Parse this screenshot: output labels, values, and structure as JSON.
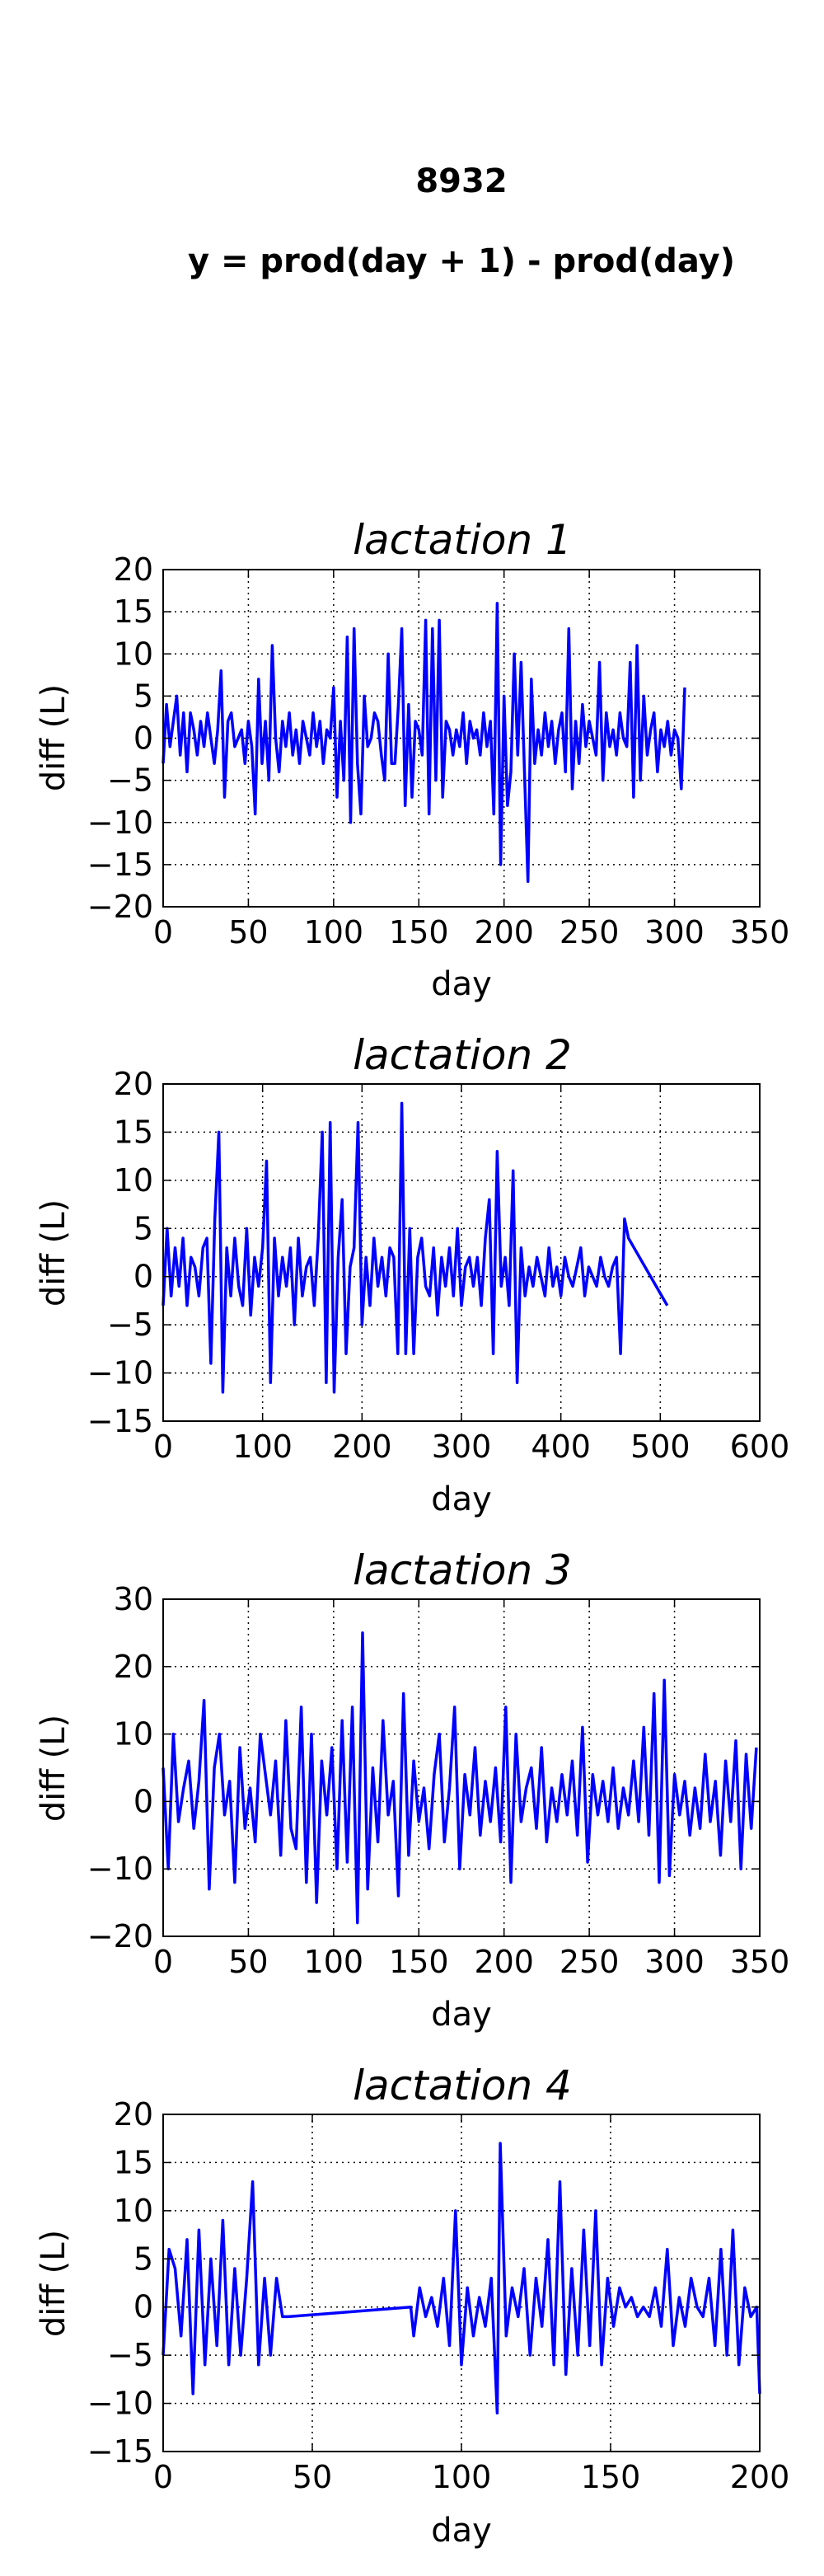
{
  "figure": {
    "title": "8932",
    "subtitle": "y = prod(day + 1) - prod(day)"
  },
  "chart_data": [
    {
      "type": "line",
      "title": "lactation 1",
      "xlabel": "day",
      "ylabel": "diff (L)",
      "xlim": [
        0,
        350
      ],
      "ylim": [
        -20,
        20
      ],
      "xticks": [
        0,
        50,
        100,
        150,
        200,
        250,
        300,
        350
      ],
      "yticks": [
        -20,
        -15,
        -10,
        -5,
        0,
        5,
        10,
        15,
        20
      ],
      "grid": true,
      "color": "#0000ff",
      "series": [
        {
          "x": [
            0,
            2,
            4,
            6,
            8,
            10,
            12,
            14,
            16,
            18,
            20,
            22,
            24,
            26,
            28,
            30,
            32,
            34,
            36,
            38,
            40,
            42,
            44,
            46,
            48,
            50,
            52,
            54,
            56,
            58,
            60,
            62,
            64,
            66,
            68,
            70,
            72,
            74,
            76,
            78,
            80,
            82,
            84,
            86,
            88,
            90,
            92,
            94,
            96,
            98,
            100,
            102,
            104,
            106,
            108,
            110,
            112,
            114,
            116,
            118,
            120,
            122,
            124,
            126,
            128,
            130,
            132,
            134,
            136,
            138,
            140,
            142,
            144,
            146,
            148,
            150,
            152,
            154,
            156,
            158,
            160,
            162,
            164,
            166,
            168,
            170,
            172,
            174,
            176,
            178,
            180,
            182,
            184,
            186,
            188,
            190,
            192,
            194,
            196,
            198,
            200,
            202,
            204,
            206,
            208,
            210,
            212,
            214,
            216,
            218,
            220,
            222,
            224,
            226,
            228,
            230,
            232,
            234,
            236,
            238,
            240,
            242,
            244,
            246,
            248,
            250,
            252,
            254,
            256,
            258,
            260,
            262,
            264,
            266,
            268,
            270,
            272,
            274,
            276,
            278,
            280,
            282,
            284,
            286,
            288,
            290,
            292,
            294,
            296,
            298,
            300,
            302,
            304,
            306
          ],
          "values": [
            -3,
            4,
            -1,
            2,
            5,
            -2,
            3,
            -4,
            3,
            1,
            -2,
            2,
            -1,
            3,
            0,
            -3,
            1,
            8,
            -7,
            2,
            3,
            -1,
            0,
            1,
            -3,
            2,
            -1,
            -9,
            7,
            -3,
            2,
            -5,
            11,
            0,
            -4,
            2,
            -1,
            3,
            -2,
            1,
            -3,
            2,
            0,
            -2,
            3,
            -1,
            2,
            -3,
            1,
            0,
            6,
            -7,
            2,
            -5,
            12,
            -10,
            13,
            -3,
            -9,
            5,
            -1,
            0,
            3,
            2,
            -2,
            -5,
            10,
            -3,
            -3,
            4,
            13,
            -8,
            4,
            -7,
            2,
            1,
            -2,
            14,
            -9,
            13,
            -5,
            14,
            -7,
            2,
            1,
            -2,
            1,
            -1,
            3,
            -3,
            2,
            0,
            1,
            -2,
            3,
            -1,
            2,
            -9,
            16,
            -15,
            5,
            -8,
            -4,
            10,
            -2,
            9,
            -4,
            -17,
            7,
            -3,
            1,
            -2,
            3,
            -1,
            2,
            -3,
            1,
            3,
            -4,
            13,
            -6,
            2,
            -3,
            4,
            -1,
            2,
            0,
            -2,
            9,
            -5,
            3,
            -1,
            1,
            -2,
            3,
            0,
            -1,
            9,
            -7,
            11,
            -5,
            5,
            -2,
            1,
            3,
            -4,
            1,
            -1,
            2,
            -2,
            1,
            0,
            -6,
            6
          ]
        }
      ]
    },
    {
      "type": "line",
      "title": "lactation 2",
      "xlabel": "day",
      "ylabel": "diff (L)",
      "xlim": [
        0,
        600
      ],
      "ylim": [
        -15,
        20
      ],
      "xticks": [
        0,
        100,
        200,
        300,
        400,
        500,
        600
      ],
      "yticks": [
        -15,
        -10,
        -5,
        0,
        5,
        10,
        15,
        20
      ],
      "grid": true,
      "color": "#0000ff",
      "series": [
        {
          "x": [
            0,
            4,
            8,
            12,
            16,
            20,
            24,
            28,
            32,
            36,
            40,
            44,
            48,
            52,
            56,
            60,
            64,
            68,
            72,
            76,
            80,
            84,
            88,
            92,
            96,
            100,
            104,
            108,
            112,
            116,
            120,
            124,
            128,
            132,
            136,
            140,
            144,
            148,
            152,
            156,
            160,
            164,
            168,
            172,
            176,
            180,
            184,
            188,
            192,
            196,
            200,
            204,
            208,
            212,
            216,
            220,
            224,
            228,
            232,
            236,
            240,
            244,
            248,
            252,
            256,
            260,
            264,
            268,
            272,
            276,
            280,
            284,
            288,
            292,
            296,
            300,
            304,
            308,
            312,
            316,
            320,
            324,
            328,
            332,
            336,
            340,
            344,
            348,
            352,
            356,
            360,
            364,
            368,
            372,
            376,
            380,
            384,
            388,
            392,
            396,
            400,
            404,
            408,
            412,
            416,
            420,
            424,
            428,
            432,
            436,
            440,
            444,
            448,
            452,
            456,
            460,
            464,
            468,
            507
          ],
          "values": [
            -3,
            5,
            -2,
            3,
            -1,
            4,
            -3,
            2,
            1,
            -2,
            3,
            4,
            -9,
            6,
            15,
            -12,
            3,
            -2,
            4,
            -1,
            -3,
            5,
            -4,
            2,
            -1,
            3,
            12,
            -11,
            4,
            -2,
            2,
            -1,
            3,
            -5,
            4,
            -2,
            1,
            2,
            -3,
            4,
            15,
            -11,
            16,
            -12,
            2,
            8,
            -8,
            1,
            3,
            16,
            -5,
            2,
            -3,
            4,
            -1,
            2,
            -2,
            3,
            2,
            -8,
            18,
            -8,
            5,
            -8,
            2,
            4,
            -1,
            -2,
            3,
            -4,
            2,
            -1,
            3,
            -2,
            5,
            -3,
            1,
            2,
            -1,
            2,
            -3,
            4,
            8,
            -8,
            13,
            -1,
            2,
            -3,
            11,
            -11,
            3,
            -2,
            1,
            -1,
            2,
            0,
            -2,
            3,
            -1,
            1,
            -2,
            2,
            0,
            -1,
            1,
            3,
            -2,
            1,
            0,
            -1,
            2,
            0,
            -1,
            1,
            2,
            -8,
            6,
            4,
            -3
          ]
        }
      ]
    },
    {
      "type": "line",
      "title": "lactation 3",
      "xlabel": "day",
      "ylabel": "diff (L)",
      "xlim": [
        0,
        350
      ],
      "ylim": [
        -20,
        30
      ],
      "xticks": [
        0,
        50,
        100,
        150,
        200,
        250,
        300,
        350
      ],
      "yticks": [
        -20,
        -10,
        0,
        10,
        20,
        30
      ],
      "grid": true,
      "color": "#0000ff",
      "series": [
        {
          "x": [
            0,
            3,
            6,
            9,
            12,
            15,
            18,
            21,
            24,
            27,
            30,
            33,
            36,
            39,
            42,
            45,
            48,
            51,
            54,
            57,
            60,
            63,
            66,
            69,
            72,
            75,
            78,
            81,
            84,
            87,
            90,
            93,
            96,
            99,
            102,
            105,
            108,
            111,
            114,
            117,
            120,
            123,
            126,
            129,
            132,
            135,
            138,
            141,
            144,
            147,
            150,
            153,
            156,
            159,
            162,
            165,
            168,
            171,
            174,
            177,
            180,
            183,
            186,
            189,
            192,
            195,
            198,
            201,
            204,
            207,
            210,
            213,
            216,
            219,
            222,
            225,
            228,
            231,
            234,
            237,
            240,
            243,
            246,
            249,
            252,
            255,
            258,
            261,
            264,
            267,
            270,
            273,
            276,
            279,
            282,
            285,
            288,
            291,
            294,
            297,
            300,
            303,
            306,
            309,
            312,
            315,
            318,
            321,
            324,
            327,
            330,
            333,
            336,
            339,
            342,
            345,
            348
          ],
          "values": [
            5,
            -10,
            10,
            -3,
            2,
            6,
            -4,
            3,
            15,
            -13,
            5,
            10,
            -2,
            3,
            -12,
            8,
            -4,
            2,
            -6,
            10,
            4,
            -2,
            6,
            -8,
            12,
            -4,
            -7,
            14,
            -12,
            10,
            -15,
            6,
            -2,
            8,
            -10,
            12,
            -9,
            14,
            -18,
            25,
            -13,
            5,
            -6,
            12,
            -2,
            3,
            -14,
            16,
            -8,
            6,
            -3,
            2,
            -7,
            4,
            10,
            -6,
            2,
            14,
            -10,
            4,
            -2,
            8,
            -5,
            3,
            -3,
            5,
            -6,
            14,
            -12,
            10,
            -3,
            2,
            5,
            -4,
            8,
            -6,
            2,
            -3,
            4,
            -2,
            6,
            -5,
            11,
            -9,
            4,
            -2,
            3,
            -3,
            5,
            -4,
            2,
            -2,
            6,
            -3,
            11,
            -5,
            16,
            -12,
            18,
            -11,
            4,
            -2,
            3,
            -5,
            2,
            -4,
            7,
            -3,
            3,
            -8,
            6,
            -3,
            9,
            -10,
            7,
            -4,
            8
          ]
        }
      ]
    },
    {
      "type": "line",
      "title": "lactation 4",
      "xlabel": "day",
      "ylabel": "diff (L)",
      "xlim": [
        0,
        200
      ],
      "ylim": [
        -15,
        20
      ],
      "xticks": [
        0,
        50,
        100,
        150,
        200
      ],
      "yticks": [
        -15,
        -10,
        -5,
        0,
        5,
        10,
        15,
        20
      ],
      "grid": true,
      "color": "#0000ff",
      "series": [
        {
          "x": [
            0,
            2,
            4,
            6,
            8,
            10,
            12,
            14,
            16,
            18,
            20,
            22,
            24,
            26,
            28,
            30,
            32,
            34,
            36,
            38,
            40,
            42,
            83,
            84,
            86,
            88,
            90,
            92,
            94,
            96,
            98,
            100,
            102,
            104,
            106,
            108,
            110,
            112,
            113,
            115,
            117,
            119,
            121,
            123,
            125,
            127,
            129,
            131,
            133,
            135,
            137,
            139,
            141,
            143,
            145,
            147,
            149,
            151,
            153,
            155,
            157,
            159,
            161,
            163,
            165,
            167,
            169,
            171,
            173,
            175,
            177,
            179,
            181,
            183,
            185,
            187,
            189,
            191,
            193,
            195,
            197,
            199,
            200
          ],
          "values": [
            -5,
            6,
            4,
            -3,
            7,
            -9,
            8,
            -6,
            5,
            -4,
            9,
            -6,
            4,
            -5,
            3,
            13,
            -6,
            3,
            -5,
            3,
            -1,
            -1,
            0,
            -3,
            2,
            -1,
            1,
            -2,
            3,
            -4,
            10,
            -6,
            2,
            -3,
            1,
            -2,
            3,
            -11,
            17,
            -3,
            2,
            -1,
            4,
            -5,
            3,
            -2,
            7,
            -6,
            13,
            -7,
            4,
            -5,
            8,
            -4,
            10,
            -6,
            3,
            -2,
            2,
            0,
            1,
            -1,
            0,
            -1,
            2,
            -2,
            6,
            -4,
            1,
            -2,
            3,
            0,
            -1,
            3,
            -4,
            6,
            -5,
            8,
            -6,
            2,
            -1,
            0,
            -9
          ]
        }
      ]
    }
  ]
}
